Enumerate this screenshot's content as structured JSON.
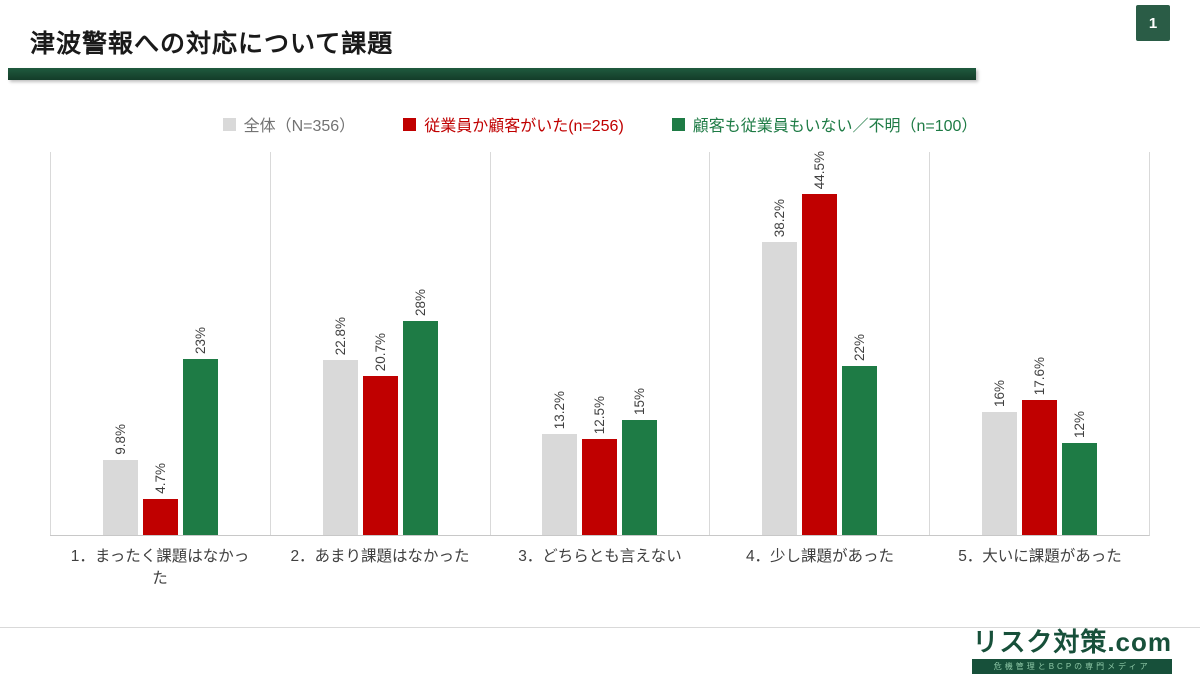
{
  "title": "津波警報への対応について課題",
  "page": {
    "number": "1"
  },
  "legend": [
    {
      "label": "全体（N=356）",
      "color": "#d9d9d9",
      "text_color": "#737373"
    },
    {
      "label": "従業員か顧客がいた(n=256)",
      "color": "#c00000",
      "text_color": "#c00000"
    },
    {
      "label": "顧客も従業員もいない／不明（n=100）",
      "color": "#1e7b45",
      "text_color": "#1e7b45"
    }
  ],
  "chart_data": {
    "type": "bar",
    "title": "津波警報への対応について課題",
    "categories": [
      "1．まったく課題はなかった",
      "2．あまり課題はなかった",
      "3．どちらとも言えない",
      "4．少し課題があった",
      "5．大いに課題があった"
    ],
    "series": [
      {
        "name": "全体（N=356）",
        "color": "#d9d9d9",
        "values": [
          9.8,
          22.8,
          13.2,
          38.2,
          16
        ],
        "labels": [
          "9.8%",
          "22.8%",
          "13.2%",
          "38.2%",
          "16%"
        ]
      },
      {
        "name": "従業員か顧客がいた(n=256)",
        "color": "#c00000",
        "values": [
          4.7,
          20.7,
          12.5,
          44.5,
          17.6
        ],
        "labels": [
          "4.7%",
          "20.7%",
          "12.5%",
          "44.5%",
          "17.6%"
        ]
      },
      {
        "name": "顧客も従業員もいない／不明（n=100）",
        "color": "#1e7b45",
        "values": [
          23,
          28,
          15,
          22,
          12
        ],
        "labels": [
          "23%",
          "28%",
          "15%",
          "22%",
          "12%"
        ]
      }
    ],
    "xlabel": "",
    "ylabel": "",
    "ylim": [
      0,
      50
    ],
    "grid": "vertical category separators only",
    "legend_position": "top",
    "value_label_orientation": "rotated-90"
  },
  "footer": {
    "logo_text": "リスク対策.com",
    "logo_subtext": "危機管理とBCPの専門メディア"
  }
}
